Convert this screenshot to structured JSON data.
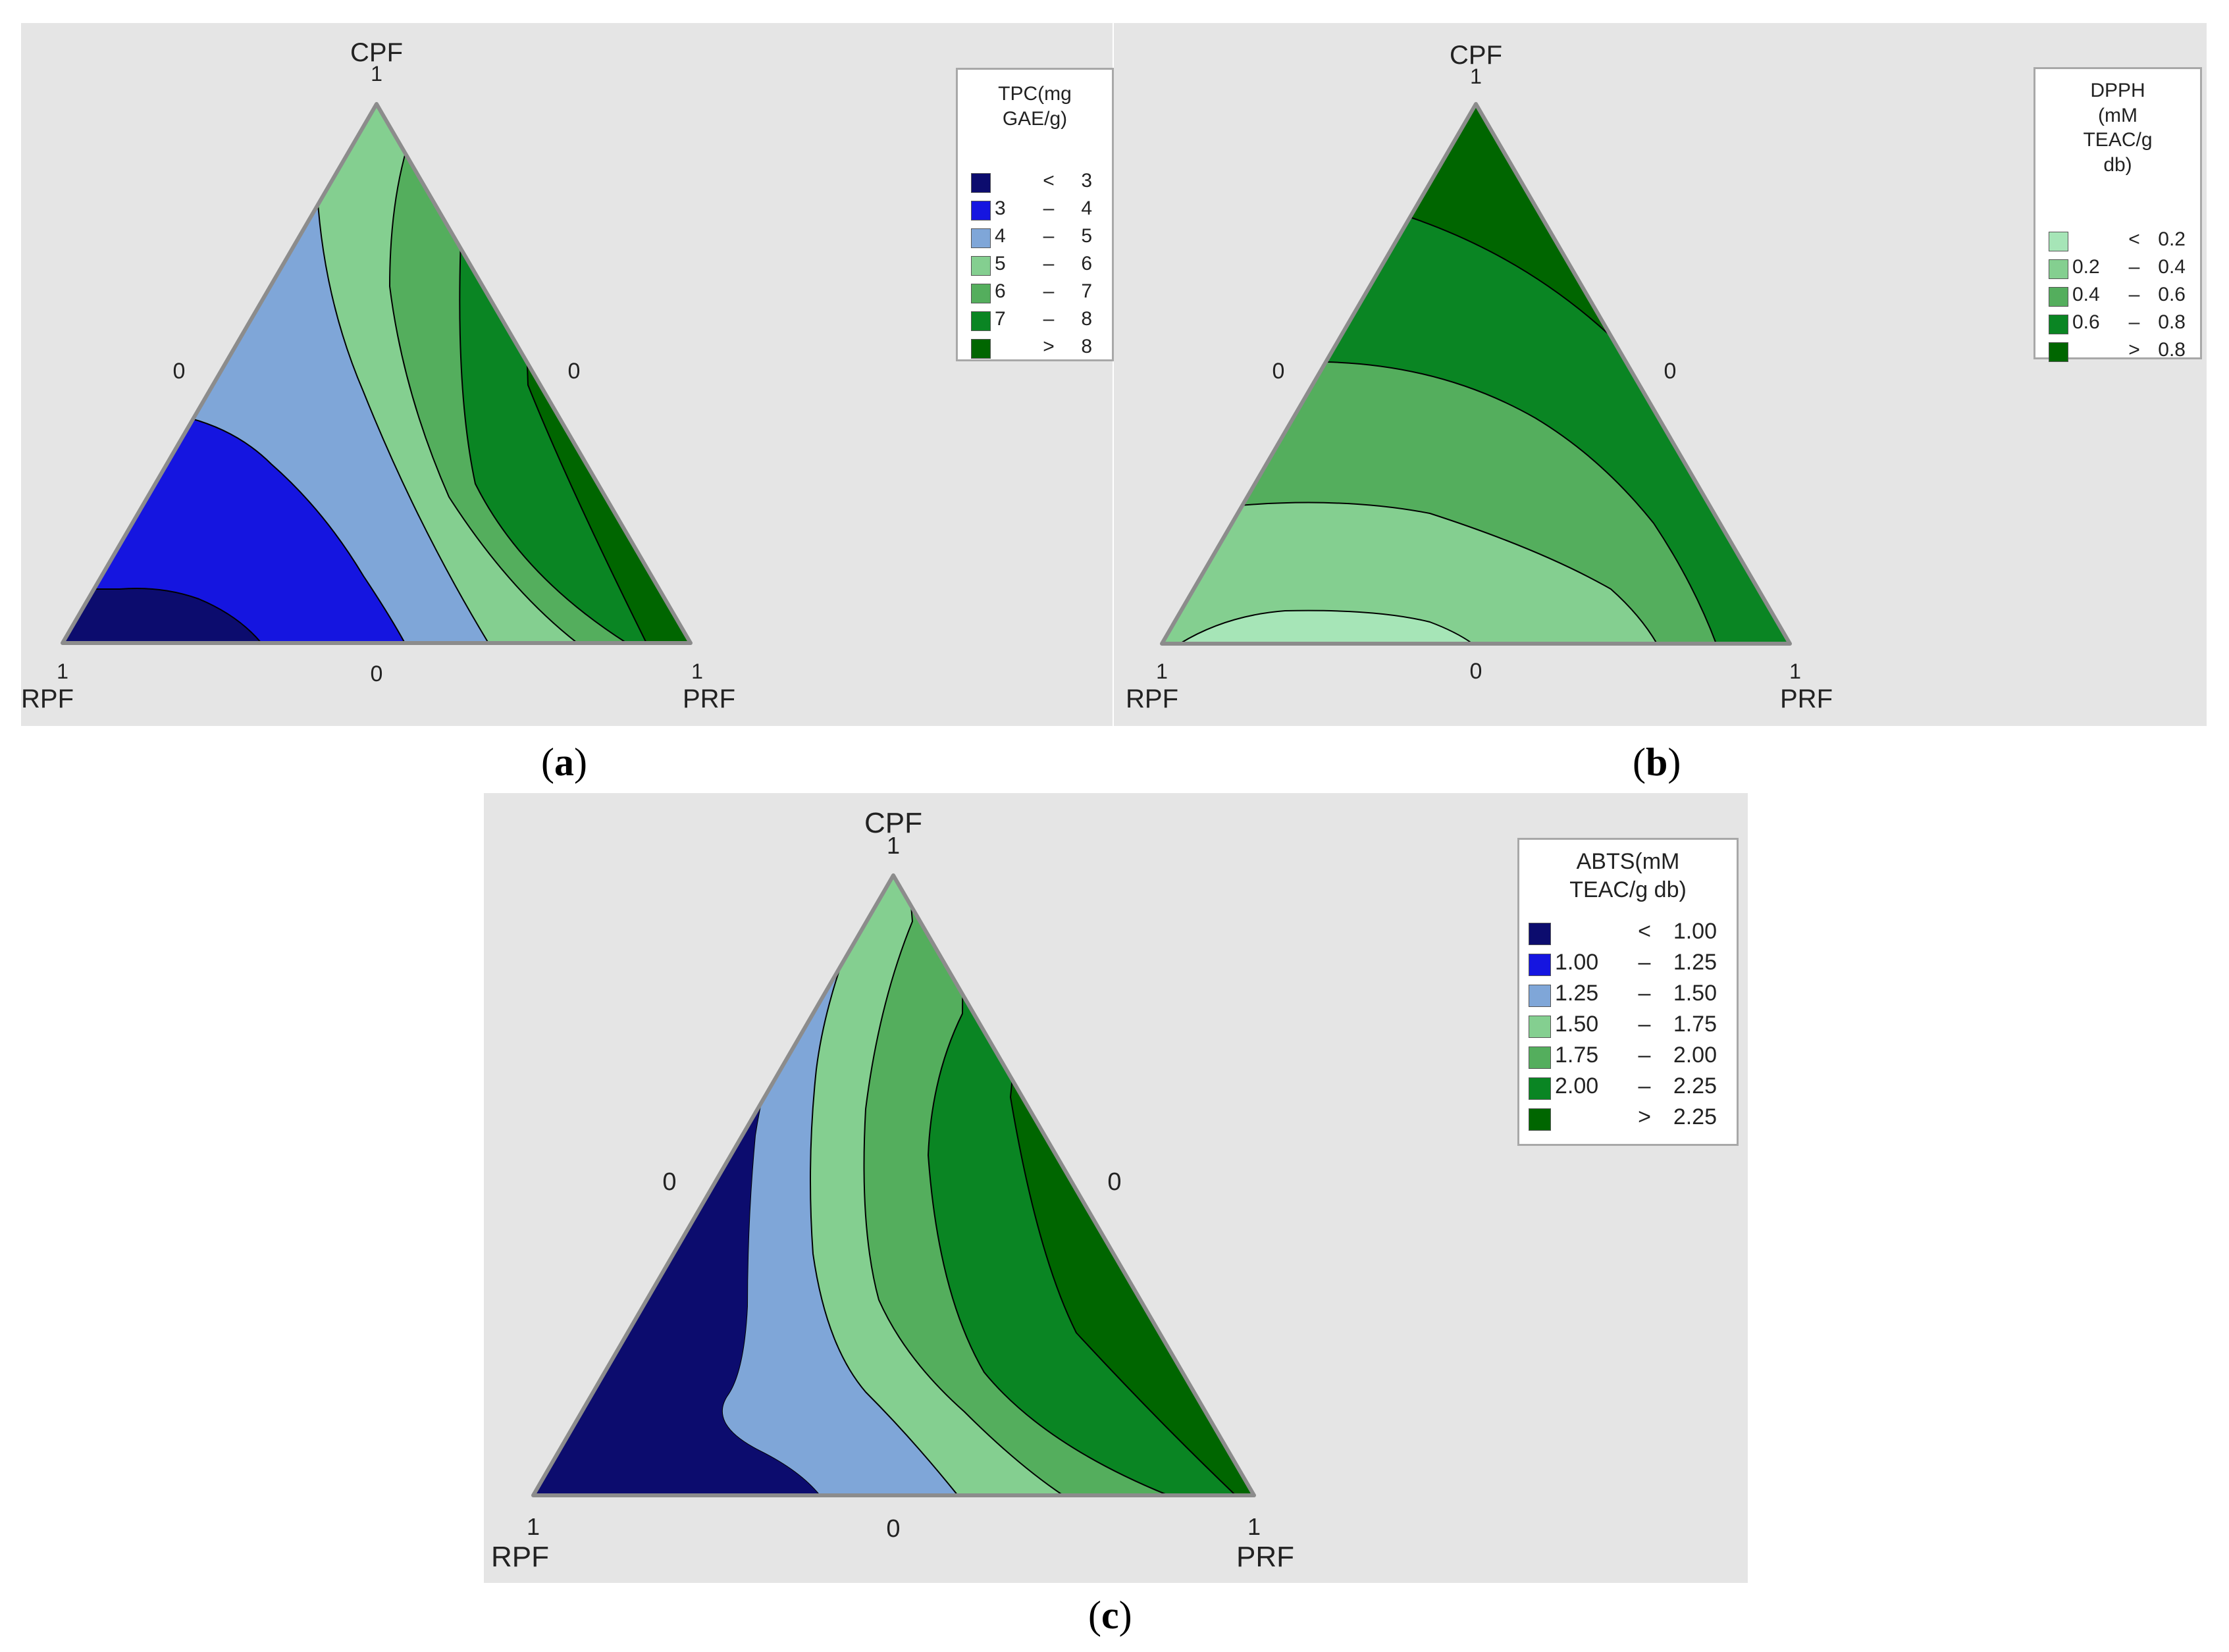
{
  "panel_labels": {
    "a": {
      "open": "(",
      "letter": "a",
      "close": ")"
    },
    "b": {
      "open": "(",
      "letter": "b",
      "close": ")"
    },
    "c": {
      "open": "(",
      "letter": "c",
      "close": ")"
    }
  },
  "chart_data": [
    {
      "type": "ternary-contour",
      "panel": "a",
      "vertices": {
        "top": "CPF",
        "left": "RPF",
        "right": "PRF"
      },
      "vertex_ticks": {
        "top": "1",
        "left": "1",
        "right": "1"
      },
      "edge_ticks": {
        "left": "0",
        "right": "0",
        "bottom": "0"
      },
      "legend_title": [
        "TPC(mg",
        "GAE/g)"
      ],
      "legend": [
        {
          "lo": "",
          "op": "<",
          "hi": "3",
          "color": "#0c0c6e"
        },
        {
          "lo": "3",
          "op": "–",
          "hi": "4",
          "color": "#1515e0"
        },
        {
          "lo": "4",
          "op": "–",
          "hi": "5",
          "color": "#7fa6d8"
        },
        {
          "lo": "5",
          "op": "–",
          "hi": "6",
          "color": "#84cf90"
        },
        {
          "lo": "6",
          "op": "–",
          "hi": "7",
          "color": "#54ae5d"
        },
        {
          "lo": "7",
          "op": "–",
          "hi": "8",
          "color": "#0a8523"
        },
        {
          "lo": "",
          "op": ">",
          "hi": "8",
          "color": "#006600"
        }
      ]
    },
    {
      "type": "ternary-contour",
      "panel": "b",
      "vertices": {
        "top": "CPF",
        "left": "RPF",
        "right": "PRF"
      },
      "vertex_ticks": {
        "top": "1",
        "left": "1",
        "right": "1"
      },
      "edge_ticks": {
        "left": "0",
        "right": "0",
        "bottom": "0"
      },
      "legend_title": [
        "DPPH",
        "(mM",
        "TEAC/g",
        "db)"
      ],
      "legend": [
        {
          "lo": "",
          "op": "<",
          "hi": "0.2",
          "color": "#a6e5b7"
        },
        {
          "lo": "0.2",
          "op": "–",
          "hi": "0.4",
          "color": "#84cf90"
        },
        {
          "lo": "0.4",
          "op": "–",
          "hi": "0.6",
          "color": "#54ae5d"
        },
        {
          "lo": "0.6",
          "op": "–",
          "hi": "0.8",
          "color": "#0a8523"
        },
        {
          "lo": "",
          "op": ">",
          "hi": "0.8",
          "color": "#006600"
        }
      ]
    },
    {
      "type": "ternary-contour",
      "panel": "c",
      "vertices": {
        "top": "CPF",
        "left": "RPF",
        "right": "PRF"
      },
      "vertex_ticks": {
        "top": "1",
        "left": "1",
        "right": "1"
      },
      "edge_ticks": {
        "left": "0",
        "right": "0",
        "bottom": "0"
      },
      "legend_title": [
        "ABTS(mM",
        "TEAC/g db)"
      ],
      "legend": [
        {
          "lo": "",
          "op": "<",
          "hi": "1.00",
          "color": "#0c0c6e"
        },
        {
          "lo": "1.00",
          "op": "–",
          "hi": "1.25",
          "color": "#1515e0"
        },
        {
          "lo": "1.25",
          "op": "–",
          "hi": "1.50",
          "color": "#7fa6d8"
        },
        {
          "lo": "1.50",
          "op": "–",
          "hi": "1.75",
          "color": "#84cf90"
        },
        {
          "lo": "1.75",
          "op": "–",
          "hi": "2.00",
          "color": "#54ae5d"
        },
        {
          "lo": "2.00",
          "op": "–",
          "hi": "2.25",
          "color": "#0a8523"
        },
        {
          "lo": "",
          "op": ">",
          "hi": "2.25",
          "color": "#006600"
        }
      ]
    }
  ]
}
